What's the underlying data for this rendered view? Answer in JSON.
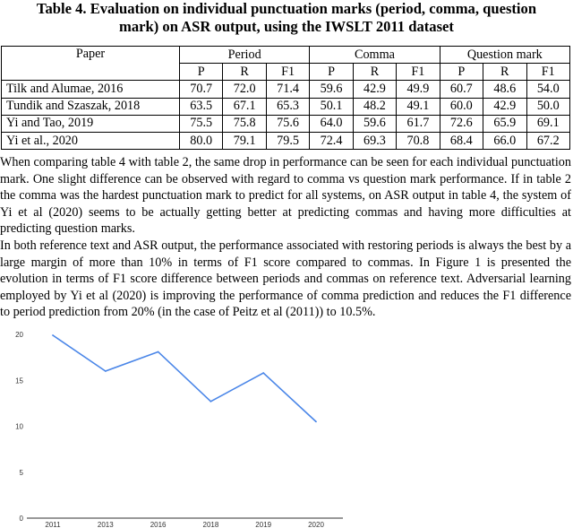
{
  "caption": {
    "line1": "Table 4. Evaluation on individual punctuation marks (period, comma, question",
    "line2": "mark) on ASR output, using the IWSLT 2011 dataset"
  },
  "table": {
    "header": {
      "paper": "Paper",
      "period": "Period",
      "comma": "Comma",
      "question": "Question mark"
    },
    "sub": [
      "P",
      "R",
      "F1",
      "P",
      "R",
      "F1",
      "P",
      "R",
      "F1"
    ],
    "rows": [
      {
        "paper": "Tilk and Alumae, 2016",
        "values": [
          "70.7",
          "72.0",
          "71.4",
          "59.6",
          "42.9",
          "49.9",
          "60.7",
          "48.6",
          "54.0"
        ]
      },
      {
        "paper": "Tundik and Szaszak, 2018",
        "values": [
          "63.5",
          "67.1",
          "65.3",
          "50.1",
          "48.2",
          "49.1",
          "60.0",
          "42.9",
          "50.0"
        ]
      },
      {
        "paper": "Yi and Tao, 2019",
        "values": [
          "75.5",
          "75.8",
          "75.6",
          "64.0",
          "59.6",
          "61.7",
          "72.6",
          "65.9",
          "69.1"
        ]
      },
      {
        "paper": "Yi et al., 2020",
        "values": [
          "80.0",
          "79.1",
          "79.5",
          "72.4",
          "69.3",
          "70.8",
          "68.4",
          "66.0",
          "67.2"
        ]
      }
    ]
  },
  "paragraphs": [
    "When comparing table 4 with table 2, the same drop in performance can be seen for each individual punctuation mark. One slight difference can be observed with regard to comma vs question mark performance. If in table 2 the comma was the hardest punctuation mark to predict for all systems, on ASR output in table 4, the system of Yi et al (2020) seems to be actually getting better at predicting commas and having more difficulties at predicting question marks.",
    "In both reference text and ASR output, the performance associated with restoring periods is always the best by a large margin of more than 10% in terms of F1 score compared to commas. In Figure 1 is presented the evolution in terms of F1 score difference between periods and commas on reference text. Adversarial learning employed by Yi et al (2020) is improving the performance of comma prediction and reduces the F1 difference to period prediction from 20% (in the case of Peitz et al (2011)) to 10.5%."
  ],
  "chart_data": {
    "type": "line",
    "categories": [
      "2011",
      "2013",
      "2016",
      "2018",
      "2019",
      "2020"
    ],
    "values": [
      19.9,
      16.0,
      18.1,
      12.7,
      15.8,
      10.5
    ],
    "yticks": [
      0,
      5,
      10,
      15,
      20
    ],
    "ylim": [
      0,
      20
    ],
    "line_color": "#4a86e8",
    "grid": false
  }
}
